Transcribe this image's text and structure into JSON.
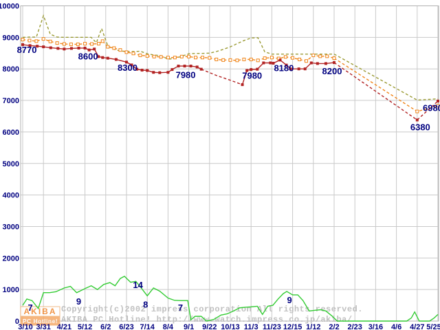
{
  "watermark": {
    "line1": "Copyright(c)2002 impress corporation All rights reserved.",
    "line2": "AKIBA PC Hotline!  http://www.watch.impress.co.jp/akiba/"
  },
  "logo": {
    "title": "AKIBA",
    "subtitle": "PC Hotline!"
  },
  "colors": {
    "max_line": "#9a9a33",
    "avg_line": "#f08418",
    "min_line": "#b22222",
    "shops_line": "#33cc33",
    "grid": "#c9c9c9",
    "border": "#b0b0b0",
    "label_text": "#000080",
    "watermark_text": "#c0c0c0",
    "logo_orange": "#ee7c1b",
    "logo_bar": "#f5a55f"
  },
  "chart_data": {
    "type": "line",
    "title": "",
    "xlabel": "",
    "ylabel": "",
    "grid": true,
    "x_axis": {
      "labels": [
        "3/10",
        "3/31",
        "4/21",
        "5/12",
        "6/2",
        "6/23",
        "7/14",
        "8/4",
        "9/1",
        "9/22",
        "10/13",
        "11/3",
        "11/23",
        "12/15",
        "1/12",
        "2/2",
        "2/23",
        "3/16",
        "4/6",
        "4/27",
        "5/25"
      ]
    },
    "y_axis": {
      "min": 0,
      "max": 10000,
      "step": 1000
    },
    "series": [
      {
        "name": "max-price",
        "color": "#9a9a33",
        "marker": null,
        "segments": [
          {
            "dashed": true,
            "markers": false,
            "points": [
              [
                0,
                9000
              ],
              [
                0.33,
                9010
              ],
              [
                0.66,
                9010
              ],
              [
                1,
                9690
              ],
              [
                1.33,
                9100
              ],
              [
                1.66,
                9010
              ],
              [
                2,
                9000
              ],
              [
                2.5,
                9000
              ],
              [
                3,
                9000
              ],
              [
                3.3,
                9000
              ],
              [
                3.55,
                8830
              ],
              [
                3.8,
                9280
              ],
              [
                4.1,
                8730
              ],
              [
                4.4,
                8620
              ],
              [
                4.7,
                8570
              ],
              [
                5,
                8550
              ],
              [
                5.33,
                8550
              ],
              [
                5.66,
                8560
              ],
              [
                6,
                8480
              ],
              [
                6.33,
                8440
              ],
              [
                6.66,
                8420
              ],
              [
                7,
                8310
              ],
              [
                7.33,
                8330
              ],
              [
                7.66,
                8400
              ],
              [
                8,
                8480
              ],
              [
                8.33,
                8490
              ],
              [
                8.66,
                8490
              ],
              [
                9,
                8500
              ],
              [
                9.33,
                8550
              ],
              [
                9.66,
                8620
              ],
              [
                10,
                8700
              ],
              [
                10.33,
                8800
              ],
              [
                10.66,
                8900
              ],
              [
                11,
                8980
              ],
              [
                11.33,
                8990
              ],
              [
                11.66,
                8540
              ],
              [
                12,
                8470
              ],
              [
                12.5,
                8470
              ],
              [
                13,
                8470
              ],
              [
                13.5,
                8470
              ],
              [
                14,
                8470
              ],
              [
                14.5,
                8470
              ],
              [
                15,
                8470
              ],
              [
                19,
                7010
              ],
              [
                20,
                7050
              ]
            ]
          }
        ]
      },
      {
        "name": "avg-price",
        "color": "#f08418",
        "marker": "square-open",
        "segments": [
          {
            "dashed": true,
            "markers": true,
            "points": [
              [
                0,
                8930
              ],
              [
                0.33,
                8900
              ],
              [
                0.66,
                8880
              ],
              [
                1,
                8950
              ],
              [
                1.33,
                8870
              ],
              [
                1.66,
                8820
              ],
              [
                2,
                8790
              ],
              [
                2.33,
                8780
              ],
              [
                2.66,
                8780
              ],
              [
                3,
                8800
              ],
              [
                3.33,
                8790
              ],
              [
                3.66,
                8800
              ],
              [
                3.85,
                8880
              ],
              [
                4.1,
                8700
              ],
              [
                4.4,
                8660
              ],
              [
                4.7,
                8600
              ],
              [
                5,
                8530
              ],
              [
                5.33,
                8490
              ],
              [
                5.66,
                8430
              ],
              [
                6,
                8410
              ],
              [
                6.33,
                8390
              ],
              [
                6.66,
                8380
              ],
              [
                7,
                8360
              ],
              [
                7.33,
                8360
              ],
              [
                7.66,
                8390
              ],
              [
                8,
                8390
              ],
              [
                8.33,
                8360
              ],
              [
                8.66,
                8360
              ],
              [
                9,
                8350
              ],
              [
                9.33,
                8300
              ],
              [
                9.66,
                8280
              ],
              [
                10,
                8280
              ],
              [
                10.33,
                8270
              ],
              [
                10.66,
                8300
              ],
              [
                11,
                8300
              ],
              [
                11.33,
                8270
              ],
              [
                11.66,
                8340
              ],
              [
                12,
                8360
              ],
              [
                12.33,
                8330
              ],
              [
                12.66,
                8380
              ],
              [
                13,
                8350
              ],
              [
                13.33,
                8300
              ],
              [
                13.66,
                8250
              ],
              [
                14,
                8430
              ],
              [
                14.33,
                8400
              ],
              [
                14.66,
                8400
              ],
              [
                15,
                8340
              ]
            ]
          },
          {
            "dashed": true,
            "markers": true,
            "points": [
              [
                15,
                8340
              ],
              [
                19,
                6650
              ],
              [
                20,
                6830
              ]
            ]
          }
        ]
      },
      {
        "name": "min-price",
        "color": "#b22222",
        "marker": "square-filled",
        "segments": [
          {
            "dashed": false,
            "markers": true,
            "points": [
              [
                0,
                8770
              ],
              [
                0.35,
                8740
              ],
              [
                0.7,
                8720
              ],
              [
                1,
                8700
              ],
              [
                1.35,
                8670
              ],
              [
                1.7,
                8650
              ],
              [
                2,
                8630
              ],
              [
                2.35,
                8650
              ],
              [
                2.7,
                8660
              ],
              [
                3,
                8660
              ],
              [
                3.2,
                8600
              ],
              [
                3.45,
                8630
              ],
              [
                3.65,
                8390
              ],
              [
                3.85,
                8360
              ],
              [
                4.1,
                8340
              ],
              [
                4.5,
                8300
              ],
              [
                5,
                8215
              ],
              [
                5.25,
                8125
              ],
              [
                5.5,
                7990
              ],
              [
                5.75,
                7960
              ],
              [
                6,
                7950
              ],
              [
                6.3,
                7890
              ],
              [
                6.6,
                7880
              ],
              [
                7,
                7890
              ],
              [
                7.2,
                7980
              ],
              [
                7.5,
                8090
              ],
              [
                7.8,
                8090
              ],
              [
                8.1,
                8090
              ],
              [
                8.4,
                8060
              ],
              [
                8.6,
                7990
              ]
            ]
          },
          {
            "dashed": true,
            "markers": false,
            "points": [
              [
                8.6,
                7990
              ],
              [
                9.3,
                7800
              ],
              [
                10,
                7640
              ],
              [
                10.58,
                7500
              ]
            ]
          },
          {
            "dashed": false,
            "markers": true,
            "points": [
              [
                10.58,
                7500
              ],
              [
                10.8,
                7950
              ],
              [
                11,
                7980
              ],
              [
                11.3,
                7990
              ],
              [
                11.6,
                8190
              ],
              [
                11.93,
                8190
              ],
              [
                12.07,
                8180
              ],
              [
                12.4,
                8280
              ],
              [
                12.7,
                8120
              ],
              [
                12.9,
                8000
              ],
              [
                13.3,
                8000
              ],
              [
                13.6,
                8000
              ],
              [
                13.9,
                8190
              ],
              [
                14.2,
                8170
              ],
              [
                14.6,
                8170
              ],
              [
                15,
                8200
              ]
            ]
          },
          {
            "dashed": true,
            "markers": true,
            "points": [
              [
                15,
                8200
              ],
              [
                19,
                6380
              ],
              [
                20,
                6980
              ]
            ]
          }
        ]
      },
      {
        "name": "shop-count",
        "color": "#33cc33",
        "marker": null,
        "unit": "shops",
        "value_scale": 100,
        "segments": [
          {
            "dashed": false,
            "markers": false,
            "points": [
              [
                0,
                5
              ],
              [
                0.2,
                7
              ],
              [
                0.45,
                6.5
              ],
              [
                0.75,
                4
              ],
              [
                1,
                9
              ],
              [
                1.3,
                9
              ],
              [
                1.6,
                9.3
              ],
              [
                2,
                10.5
              ],
              [
                2.3,
                11
              ],
              [
                2.6,
                9
              ],
              [
                3,
                10.3
              ],
              [
                3.3,
                11.2
              ],
              [
                3.6,
                10
              ],
              [
                3.9,
                11.6
              ],
              [
                4.2,
                12.2
              ],
              [
                4.45,
                11.2
              ],
              [
                4.7,
                13.5
              ],
              [
                4.9,
                14.2
              ],
              [
                5.2,
                12.3
              ],
              [
                5.45,
                12.6
              ],
              [
                5.7,
                10.6
              ],
              [
                6,
                8
              ],
              [
                6.3,
                10.5
              ],
              [
                6.6,
                9.5
              ],
              [
                7,
                7.3
              ],
              [
                7.3,
                6.6
              ],
              [
                7.6,
                6.5
              ],
              [
                7.95,
                6.5
              ],
              [
                8.1,
                0.4
              ],
              [
                8.3,
                1.5
              ],
              [
                8.6,
                1.5
              ],
              [
                8.85,
                0
              ],
              [
                9.2,
                0.5
              ],
              [
                9.55,
                1.9
              ],
              [
                9.85,
                2.3
              ],
              [
                10.15,
                3.2
              ],
              [
                10.45,
                4.2
              ],
              [
                10.75,
                4.4
              ],
              [
                11,
                4.5
              ],
              [
                11.3,
                4.7
              ],
              [
                11.55,
                2.1
              ],
              [
                11.8,
                4.7
              ],
              [
                12.05,
                5
              ],
              [
                12.3,
                7
              ],
              [
                12.55,
                8.7
              ],
              [
                12.72,
                9.4
              ],
              [
                13,
                8.3
              ],
              [
                13.25,
                8.3
              ],
              [
                13.5,
                6.5
              ],
              [
                13.8,
                3.2
              ],
              [
                14.05,
                3.4
              ],
              [
                14.35,
                3.6
              ],
              [
                14.6,
                3.2
              ],
              [
                14.9,
                1.6
              ],
              [
                15.15,
                0
              ],
              [
                18.5,
                0
              ],
              [
                18.72,
                1
              ],
              [
                18.88,
                2.9
              ],
              [
                19.1,
                0
              ],
              [
                19.6,
                0
              ],
              [
                19.82,
                1
              ],
              [
                20,
                2.1
              ]
            ]
          }
        ]
      }
    ],
    "annotations": [
      {
        "text": "8770",
        "u": 0.2,
        "v": 8600
      },
      {
        "text": "8600",
        "u": 3.15,
        "v": 8400
      },
      {
        "text": "8300",
        "u": 5.05,
        "v": 8040
      },
      {
        "text": "7980",
        "u": 7.85,
        "v": 7810
      },
      {
        "text": "7980",
        "u": 11.05,
        "v": 7790
      },
      {
        "text": "8180",
        "u": 12.58,
        "v": 8030
      },
      {
        "text": "8200",
        "u": 14.9,
        "v": 7930
      },
      {
        "text": "6380",
        "u": 19.15,
        "v": 6150
      },
      {
        "text": "6980",
        "u": 19.75,
        "v": 6760
      },
      {
        "text": "7",
        "u": 0.37,
        "v": 430
      },
      {
        "text": "9",
        "u": 2.7,
        "v": 620
      },
      {
        "text": "14",
        "u": 5.55,
        "v": 1150
      },
      {
        "text": "8",
        "u": 5.92,
        "v": 520
      },
      {
        "text": "7",
        "u": 7.6,
        "v": 430
      },
      {
        "text": "9",
        "u": 12.85,
        "v": 660
      }
    ]
  }
}
